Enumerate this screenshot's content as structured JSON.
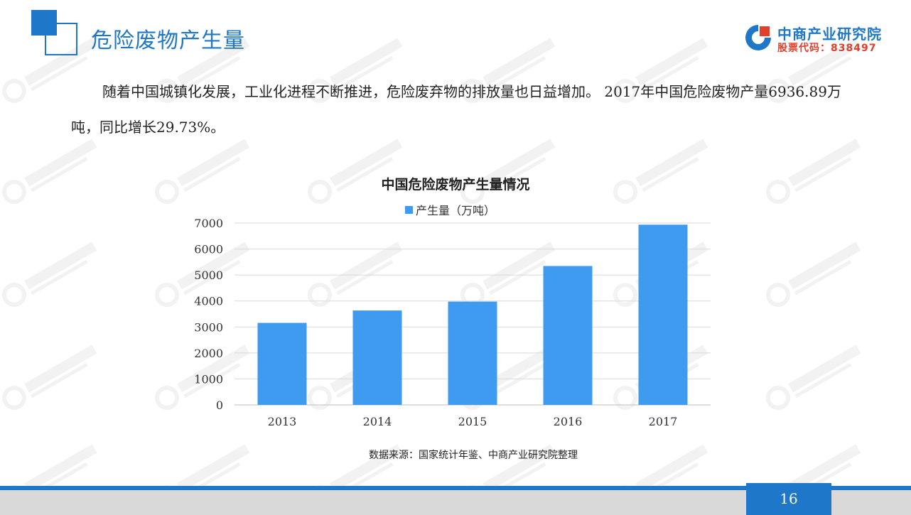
{
  "header": {
    "title": "危险废物产生量"
  },
  "logo": {
    "name": "中商产业研究院",
    "stock_code": "股票代码：838497"
  },
  "intro": {
    "text": "随着中国城镇化发展，工业化进程不断推进，危险废弃物的排放量也日益增加。 2017年中国危险废物产量6936.89万吨，同比增长29.73%。"
  },
  "chart_data": {
    "type": "bar",
    "title": "中国危险废物产生量情况",
    "categories": [
      "2013",
      "2014",
      "2015",
      "2016",
      "2017"
    ],
    "series": [
      {
        "name": "产生量（万吨）",
        "values": [
          3157,
          3634,
          3976,
          5347,
          6937
        ]
      }
    ],
    "yticks": [
      0,
      1000,
      2000,
      3000,
      4000,
      5000,
      6000,
      7000
    ],
    "ylim": [
      0,
      7000
    ],
    "grid": true,
    "legend_position": "top",
    "bar_color": "#3F9BEF",
    "source": "数据来源：国家统计年鉴、中商产业研究院整理"
  },
  "footer": {
    "page_number": "16"
  },
  "colors": {
    "accent": "#1E77C8",
    "logo_red": "#E0412D"
  }
}
